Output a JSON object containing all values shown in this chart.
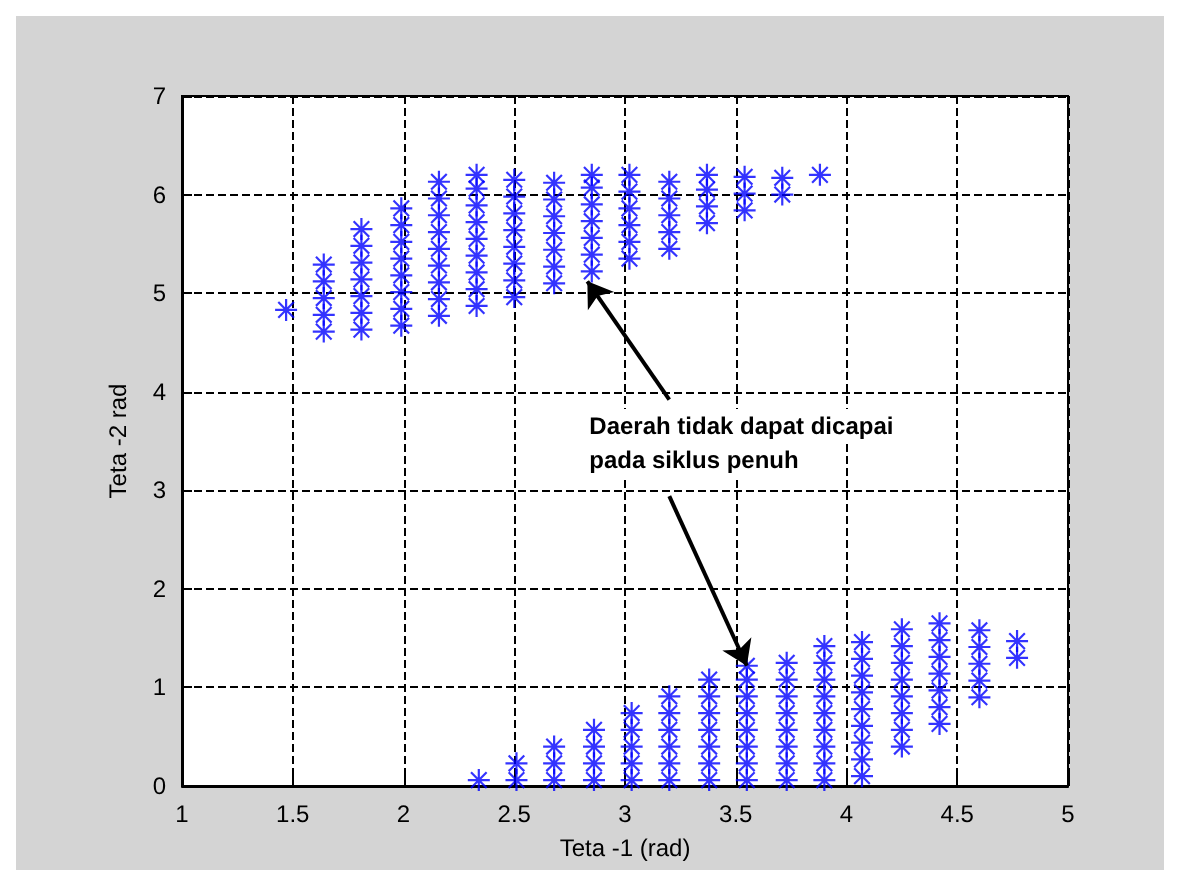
{
  "chart_data": {
    "type": "scatter",
    "xlabel": "Teta -1 (rad)",
    "ylabel": "Teta -2 rad",
    "xlim": [
      1,
      5
    ],
    "ylim": [
      0,
      7
    ],
    "xticks": [
      1,
      1.5,
      2,
      2.5,
      3,
      3.5,
      4,
      4.5,
      5
    ],
    "yticks": [
      0,
      1,
      2,
      3,
      4,
      5,
      6,
      7
    ],
    "grid": true,
    "marker": "cross",
    "annotations": [
      {
        "text": "Daerah tidak dapat dicapai",
        "x": 2.83,
        "y": 5.12
      },
      {
        "text": "pada siklus penuh",
        "x": 3.55,
        "y": 1.22
      }
    ],
    "series": [
      {
        "color": "#0000ff",
        "x": [
          1.47,
          1.64,
          1.64,
          1.64,
          1.64,
          1.64,
          1.81,
          1.81,
          1.81,
          1.81,
          1.81,
          1.81,
          1.81,
          1.99,
          1.99,
          1.99,
          1.99,
          1.99,
          1.99,
          1.99,
          1.99,
          2.16,
          2.16,
          2.16,
          2.16,
          2.16,
          2.16,
          2.16,
          2.16,
          2.16,
          2.33,
          2.33,
          2.33,
          2.33,
          2.33,
          2.33,
          2.33,
          2.33,
          2.33,
          2.5,
          2.5,
          2.5,
          2.5,
          2.5,
          2.5,
          2.5,
          2.5,
          2.68,
          2.68,
          2.68,
          2.68,
          2.68,
          2.68,
          2.68,
          2.85,
          2.85,
          2.85,
          2.85,
          2.85,
          2.85,
          2.85,
          3.02,
          3.02,
          3.02,
          3.02,
          3.02,
          3.02,
          3.2,
          3.2,
          3.2,
          3.2,
          3.2,
          3.37,
          3.37,
          3.37,
          3.37,
          3.54,
          3.54,
          3.54,
          3.71,
          3.71,
          3.88
        ],
        "values": [
          4.83,
          4.61,
          4.78,
          4.95,
          5.12,
          5.29,
          4.63,
          4.8,
          4.97,
          5.14,
          5.31,
          5.48,
          5.65,
          4.67,
          4.84,
          5.01,
          5.18,
          5.35,
          5.52,
          5.69,
          5.86,
          4.77,
          4.94,
          5.11,
          5.28,
          5.45,
          5.62,
          5.79,
          5.96,
          6.13,
          4.87,
          5.04,
          5.21,
          5.38,
          5.55,
          5.72,
          5.89,
          6.06,
          6.2,
          4.96,
          5.13,
          5.3,
          5.47,
          5.64,
          5.81,
          5.98,
          6.15,
          5.1,
          5.27,
          5.44,
          5.61,
          5.78,
          5.95,
          6.12,
          5.22,
          5.39,
          5.56,
          5.73,
          5.9,
          6.07,
          6.2,
          5.35,
          5.52,
          5.69,
          5.86,
          6.03,
          6.2,
          5.45,
          5.62,
          5.79,
          5.96,
          6.13,
          5.71,
          5.88,
          6.05,
          6.2,
          5.84,
          6.01,
          6.18,
          6.0,
          6.17,
          6.2
        ]
      },
      {
        "color": "#0000ff",
        "x": [
          2.34,
          2.51,
          2.51,
          2.68,
          2.68,
          2.68,
          2.86,
          2.86,
          2.86,
          2.86,
          3.03,
          3.03,
          3.03,
          3.03,
          3.03,
          3.2,
          3.2,
          3.2,
          3.2,
          3.2,
          3.2,
          3.38,
          3.38,
          3.38,
          3.38,
          3.38,
          3.38,
          3.38,
          3.55,
          3.55,
          3.55,
          3.55,
          3.55,
          3.55,
          3.55,
          3.55,
          3.73,
          3.73,
          3.73,
          3.73,
          3.73,
          3.73,
          3.73,
          3.73,
          3.9,
          3.9,
          3.9,
          3.9,
          3.9,
          3.9,
          3.9,
          3.9,
          3.9,
          4.07,
          4.07,
          4.07,
          4.07,
          4.07,
          4.07,
          4.07,
          4.07,
          4.07,
          4.25,
          4.25,
          4.25,
          4.25,
          4.25,
          4.25,
          4.25,
          4.25,
          4.42,
          4.42,
          4.42,
          4.42,
          4.42,
          4.42,
          4.42,
          4.6,
          4.6,
          4.6,
          4.6,
          4.6,
          4.77,
          4.77
        ],
        "values": [
          0.06,
          0.06,
          0.23,
          0.06,
          0.23,
          0.4,
          0.06,
          0.23,
          0.4,
          0.57,
          0.06,
          0.23,
          0.4,
          0.57,
          0.74,
          0.06,
          0.23,
          0.4,
          0.57,
          0.74,
          0.91,
          0.06,
          0.23,
          0.4,
          0.57,
          0.74,
          0.91,
          1.08,
          0.06,
          0.23,
          0.4,
          0.57,
          0.74,
          0.91,
          1.08,
          1.22,
          0.06,
          0.23,
          0.4,
          0.57,
          0.74,
          0.91,
          1.08,
          1.25,
          0.06,
          0.23,
          0.4,
          0.57,
          0.74,
          0.91,
          1.08,
          1.25,
          1.42,
          0.1,
          0.27,
          0.44,
          0.61,
          0.78,
          0.95,
          1.12,
          1.29,
          1.46,
          0.4,
          0.57,
          0.74,
          0.91,
          1.08,
          1.25,
          1.42,
          1.59,
          0.63,
          0.8,
          0.97,
          1.14,
          1.31,
          1.48,
          1.65,
          0.9,
          1.07,
          1.24,
          1.41,
          1.58,
          1.3,
          1.47
        ]
      }
    ]
  }
}
